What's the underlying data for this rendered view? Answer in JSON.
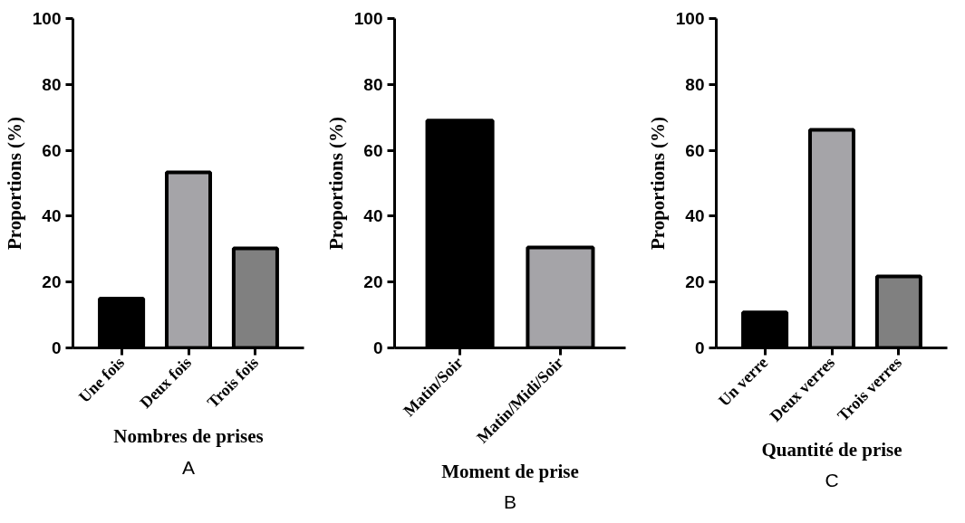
{
  "chart_data": [
    {
      "type": "bar",
      "categories": [
        "Une fois",
        "Deux fois",
        "Trois fois"
      ],
      "values": [
        15,
        53.3,
        30.2
      ],
      "colors": [
        "#000000",
        "#a5a4a8",
        "#808080"
      ],
      "xlabel": "Nombres de prises",
      "ylabel": "Proportions (%)",
      "ylim": [
        0,
        100
      ],
      "yticks": [
        0,
        20,
        40,
        60,
        80,
        100
      ],
      "grid": false,
      "annotations": [
        "A"
      ]
    },
    {
      "type": "bar",
      "categories": [
        "Matin/Soir",
        "Matin/Midi/Soir"
      ],
      "values": [
        69,
        30.5
      ],
      "colors": [
        "#000000",
        "#a5a4a8"
      ],
      "xlabel": "Moment de prise",
      "ylabel": "Proportions (%)",
      "ylim": [
        0,
        100
      ],
      "yticks": [
        0,
        20,
        40,
        60,
        80,
        100
      ],
      "grid": false,
      "annotations": [
        "B"
      ]
    },
    {
      "type": "bar",
      "categories": [
        "Un verre",
        "Deux verres",
        "Trois verres"
      ],
      "values": [
        10.8,
        66.2,
        21.7
      ],
      "colors": [
        "#000000",
        "#a5a4a8",
        "#808080"
      ],
      "xlabel": "Quantité de prise",
      "ylabel": "Proportions (%)",
      "ylim": [
        0,
        100
      ],
      "yticks": [
        0,
        20,
        40,
        60,
        80,
        100
      ],
      "grid": false,
      "annotations": [
        "C"
      ]
    }
  ]
}
